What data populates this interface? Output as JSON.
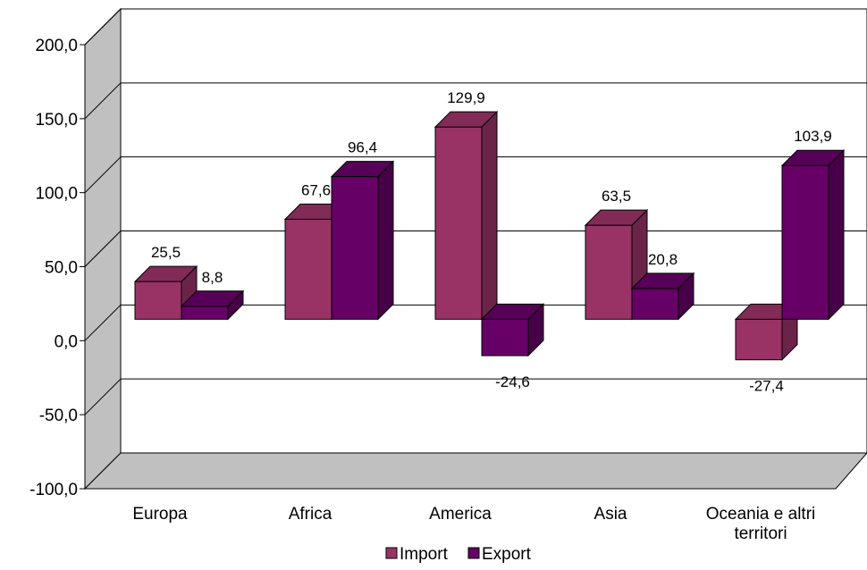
{
  "chart_data": {
    "type": "bar",
    "categories": [
      "Europa",
      "Africa",
      "America",
      "Asia",
      "Oceania e altri territori"
    ],
    "category_label_lines": [
      [
        "Europa"
      ],
      [
        "Africa"
      ],
      [
        "America"
      ],
      [
        "Asia"
      ],
      [
        "Oceania e altri",
        "territori"
      ]
    ],
    "series": [
      {
        "name": "Import",
        "values": [
          25.5,
          67.6,
          129.9,
          63.5,
          -27.4
        ],
        "labels": [
          "25,5",
          "67,6",
          "129,9",
          "63,5",
          "-27,4"
        ],
        "color": "#993366"
      },
      {
        "name": "Export",
        "values": [
          8.8,
          96.4,
          -24.6,
          20.8,
          103.9
        ],
        "labels": [
          "8,8",
          "96,4",
          "-24,6",
          "20,8",
          "103,9"
        ],
        "color": "#660066"
      }
    ],
    "ylim": [
      -100,
      200
    ],
    "yticks": [
      200,
      150,
      100,
      50,
      0,
      -50,
      -100
    ],
    "ytick_labels": [
      "200,0",
      "150,0",
      "100,0",
      "50,0",
      "0,0",
      "-50,0",
      "-100,0"
    ],
    "gridlines": true,
    "three_d": true,
    "legend_position": "bottom",
    "wall_color": "#c0c0c0"
  }
}
